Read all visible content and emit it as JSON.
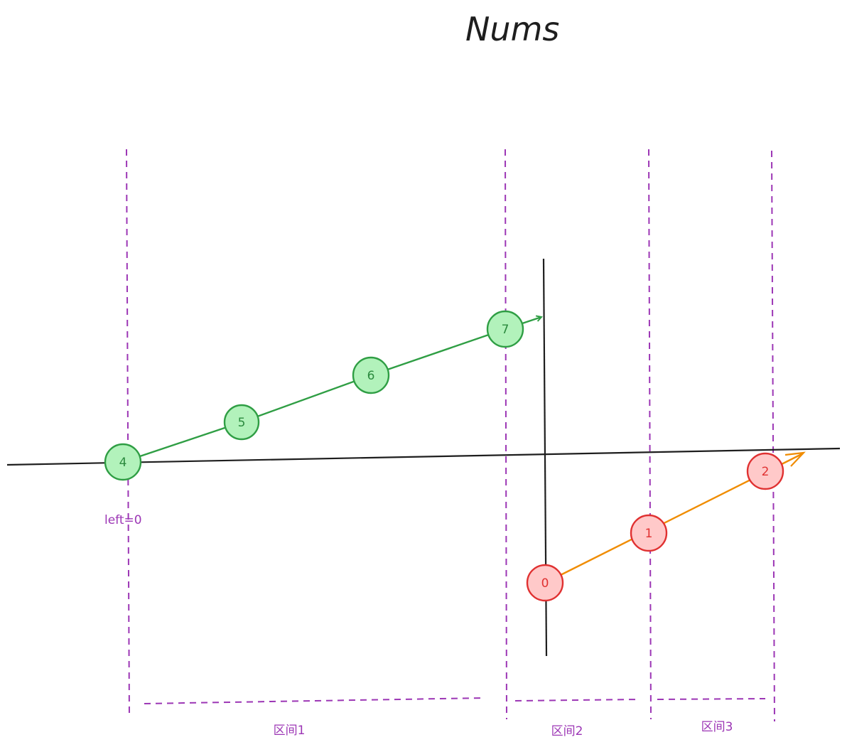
{
  "title": "Nums",
  "left_marker": "left=0",
  "colors": {
    "divider": "#9c36b5",
    "axis": "#1e1e1e",
    "green_fill": "#b2f2bb",
    "green_stroke": "#2f9e44",
    "red_fill": "#ffc9c9",
    "red_stroke": "#e03131",
    "orange_line": "#f08c00",
    "green_text": "#2b8a3e",
    "red_text": "#e03131"
  },
  "ascending_run": {
    "color": "green",
    "nodes": [
      "4",
      "5",
      "6",
      "7"
    ]
  },
  "rotated_run": {
    "color": "red",
    "nodes": [
      "0",
      "1",
      "2"
    ]
  },
  "intervals": [
    {
      "label": "区间1"
    },
    {
      "label": "区间2"
    },
    {
      "label": "区间3"
    }
  ]
}
